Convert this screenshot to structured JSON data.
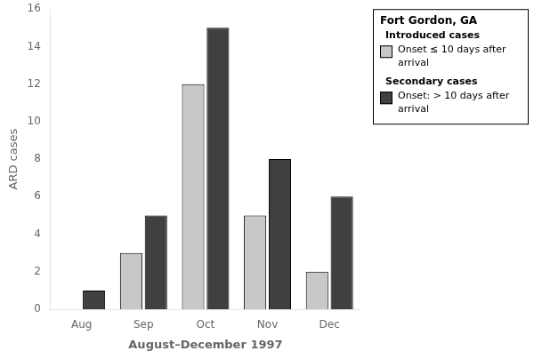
{
  "chart_data": {
    "type": "bar",
    "categories": [
      "Aug",
      "Sep",
      "Oct",
      "Nov",
      "Dec"
    ],
    "series": [
      {
        "name": "Introduced cases",
        "color": "#c8c8c8",
        "values": [
          0,
          3,
          12,
          5,
          2
        ],
        "description": [
          "Onset ≤ 10 days after",
          "arrival"
        ]
      },
      {
        "name": "Secondary cases",
        "color": "#404040",
        "values": [
          1,
          5,
          15,
          8,
          6
        ],
        "description": [
          "Onset: > 10 days after",
          "arrival"
        ]
      }
    ],
    "legend_title": "Fort Gordon, GA",
    "xlabel": "August–December 1997",
    "ylabel": "ARD cases",
    "ylim": [
      0,
      16
    ],
    "yticks": [
      0,
      2,
      4,
      6,
      8,
      10,
      12,
      14,
      16
    ],
    "grid": false,
    "legend": "right"
  }
}
